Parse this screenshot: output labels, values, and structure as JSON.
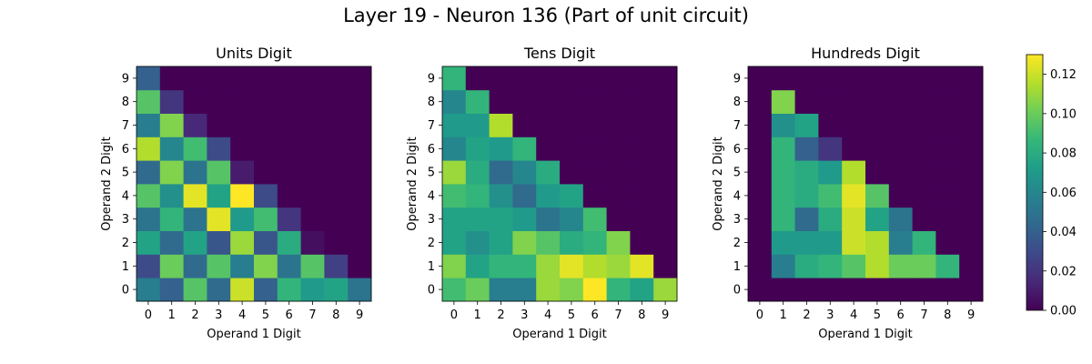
{
  "title": "Layer 19 - Neuron 136 (Part of unit circuit)",
  "colormap": [
    "#440154",
    "#482878",
    "#3e4989",
    "#31688e",
    "#26828e",
    "#1f9e89",
    "#35b779",
    "#6ece58",
    "#b5de2b",
    "#fde725"
  ],
  "colorbar": {
    "min": 0.0,
    "max": 0.13,
    "ticks": [
      0.0,
      0.02,
      0.04,
      0.06,
      0.08,
      0.1,
      0.12
    ],
    "tick_labels": [
      "0.00",
      "0.02",
      "0.04",
      "0.06",
      "0.08",
      "0.10",
      "0.12"
    ]
  },
  "chart_data": [
    {
      "type": "heatmap",
      "title": "Units Digit",
      "xlabel": "Operand 1 Digit",
      "ylabel": "Operand 2 Digit",
      "x_ticks": [
        "0",
        "1",
        "2",
        "3",
        "4",
        "5",
        "6",
        "7",
        "8",
        "9"
      ],
      "y_ticks": [
        "0",
        "1",
        "2",
        "3",
        "4",
        "5",
        "6",
        "7",
        "8",
        "9"
      ],
      "rows_note_y_from_0": true,
      "values": [
        [
          0.055,
          0.04,
          0.095,
          0.045,
          0.12,
          0.04,
          0.085,
          0.07,
          0.075,
          0.05
        ],
        [
          0.03,
          0.1,
          0.045,
          0.095,
          0.055,
          0.105,
          0.05,
          0.095,
          0.025,
          0.0
        ],
        [
          0.075,
          0.045,
          0.075,
          0.035,
          0.11,
          0.035,
          0.08,
          0.005,
          0.0,
          0.0
        ],
        [
          0.05,
          0.085,
          0.05,
          0.125,
          0.07,
          0.09,
          0.02,
          0.0,
          0.0,
          0.0
        ],
        [
          0.095,
          0.065,
          0.125,
          0.075,
          0.13,
          0.03,
          0.0,
          0.0,
          0.0,
          0.0
        ],
        [
          0.045,
          0.105,
          0.05,
          0.095,
          0.01,
          0.0,
          0.0,
          0.0,
          0.0,
          0.0
        ],
        [
          0.115,
          0.06,
          0.09,
          0.03,
          0.0,
          0.0,
          0.0,
          0.0,
          0.0,
          0.0
        ],
        [
          0.055,
          0.105,
          0.015,
          0.0,
          0.0,
          0.0,
          0.0,
          0.0,
          0.0,
          0.0
        ],
        [
          0.095,
          0.02,
          0.0,
          0.0,
          0.0,
          0.0,
          0.0,
          0.0,
          0.0,
          0.0
        ],
        [
          0.04,
          0.0,
          0.0,
          0.0,
          0.0,
          0.0,
          0.0,
          0.0,
          0.0,
          0.0
        ]
      ]
    },
    {
      "type": "heatmap",
      "title": "Tens Digit",
      "xlabel": "Operand 1 Digit",
      "ylabel": "Operand 2 Digit",
      "x_ticks": [
        "0",
        "1",
        "2",
        "3",
        "4",
        "5",
        "6",
        "7",
        "8",
        "9"
      ],
      "y_ticks": [
        "0",
        "1",
        "2",
        "3",
        "4",
        "5",
        "6",
        "7",
        "8",
        "9"
      ],
      "values": [
        [
          0.09,
          0.1,
          0.055,
          0.055,
          0.11,
          0.105,
          0.13,
          0.085,
          0.075,
          0.11
        ],
        [
          0.105,
          0.075,
          0.085,
          0.085,
          0.11,
          0.125,
          0.115,
          0.11,
          0.125,
          0.0
        ],
        [
          0.075,
          0.065,
          0.075,
          0.105,
          0.095,
          0.08,
          0.085,
          0.105,
          0.0,
          0.0
        ],
        [
          0.075,
          0.075,
          0.075,
          0.07,
          0.05,
          0.06,
          0.09,
          0.0,
          0.0,
          0.0
        ],
        [
          0.09,
          0.085,
          0.065,
          0.045,
          0.07,
          0.075,
          0.0,
          0.0,
          0.0,
          0.0
        ],
        [
          0.11,
          0.08,
          0.045,
          0.06,
          0.08,
          0.0,
          0.0,
          0.0,
          0.0,
          0.0
        ],
        [
          0.06,
          0.075,
          0.07,
          0.085,
          0.0,
          0.0,
          0.0,
          0.0,
          0.0,
          0.0
        ],
        [
          0.07,
          0.07,
          0.115,
          0.0,
          0.0,
          0.0,
          0.0,
          0.0,
          0.0,
          0.0
        ],
        [
          0.06,
          0.085,
          0.0,
          0.0,
          0.0,
          0.0,
          0.0,
          0.0,
          0.0,
          0.0
        ],
        [
          0.085,
          0.0,
          0.0,
          0.0,
          0.0,
          0.0,
          0.0,
          0.0,
          0.0,
          0.0
        ]
      ]
    },
    {
      "type": "heatmap",
      "title": "Hundreds Digit",
      "xlabel": "Operand 1 Digit",
      "ylabel": "Operand 2 Digit",
      "x_ticks": [
        "0",
        "1",
        "2",
        "3",
        "4",
        "5",
        "6",
        "7",
        "8",
        "9"
      ],
      "y_ticks": [
        "0",
        "1",
        "2",
        "3",
        "4",
        "5",
        "6",
        "7",
        "8",
        "9"
      ],
      "values": [
        [
          0.0,
          0.0,
          0.0,
          0.0,
          0.0,
          0.0,
          0.0,
          0.0,
          0.0,
          0.0
        ],
        [
          0.0,
          0.055,
          0.08,
          0.085,
          0.095,
          0.115,
          0.1,
          0.1,
          0.085,
          0.0
        ],
        [
          0.0,
          0.07,
          0.07,
          0.07,
          0.12,
          0.115,
          0.055,
          0.085,
          0.0,
          0.0
        ],
        [
          0.0,
          0.085,
          0.045,
          0.08,
          0.12,
          0.075,
          0.05,
          0.0,
          0.0,
          0.0
        ],
        [
          0.0,
          0.085,
          0.08,
          0.09,
          0.125,
          0.095,
          0.0,
          0.0,
          0.0,
          0.0
        ],
        [
          0.0,
          0.085,
          0.08,
          0.07,
          0.115,
          0.0,
          0.0,
          0.0,
          0.0,
          0.0
        ],
        [
          0.0,
          0.085,
          0.04,
          0.02,
          0.0,
          0.0,
          0.0,
          0.0,
          0.0,
          0.0
        ],
        [
          0.0,
          0.065,
          0.075,
          0.0,
          0.0,
          0.0,
          0.0,
          0.0,
          0.0,
          0.0
        ],
        [
          0.0,
          0.105,
          0.0,
          0.0,
          0.0,
          0.0,
          0.0,
          0.0,
          0.0,
          0.0
        ],
        [
          0.0,
          0.0,
          0.0,
          0.0,
          0.0,
          0.0,
          0.0,
          0.0,
          0.0,
          0.0
        ]
      ]
    }
  ]
}
